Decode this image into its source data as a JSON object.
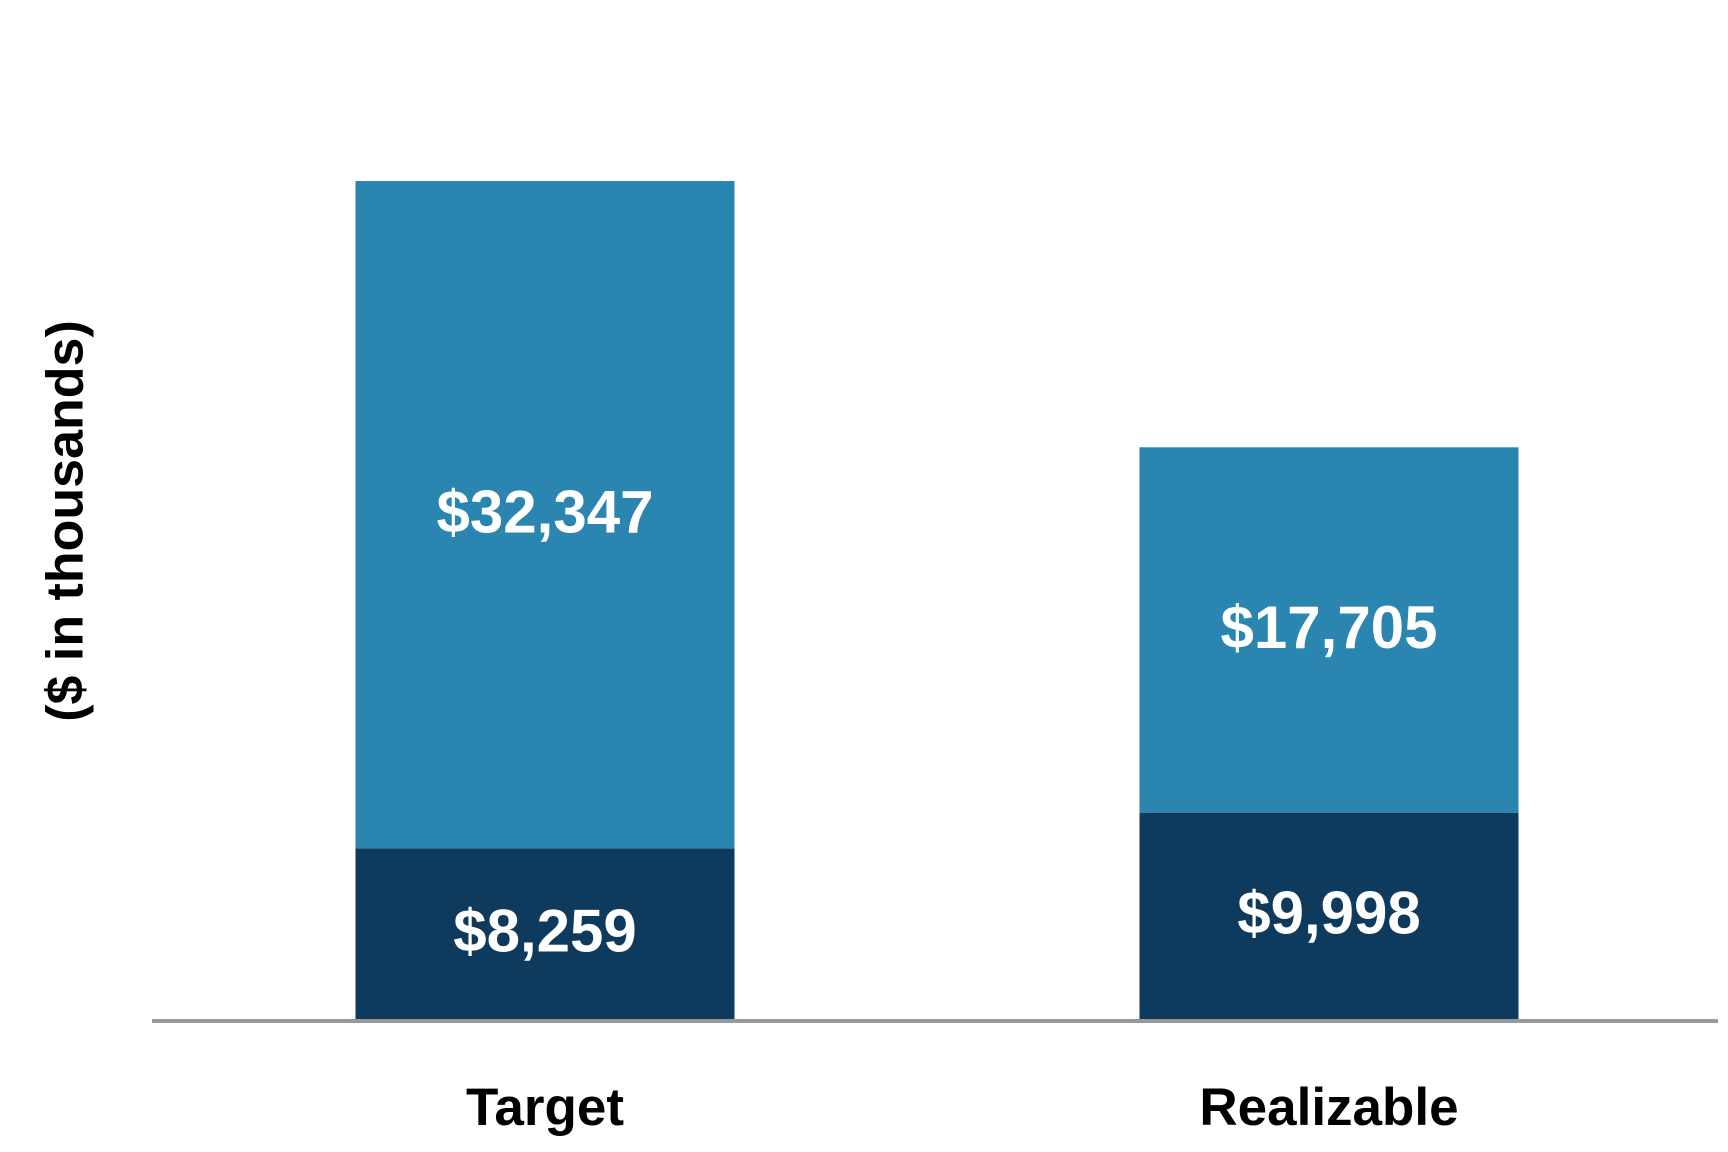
{
  "chart_data": {
    "type": "stacked_bar",
    "y_label": "($ in thousands)",
    "categories": [
      "Target",
      "Realizable"
    ],
    "series": [
      {
        "color": "#0e3a5e",
        "values": [
          8259,
          9998
        ],
        "value_labels": [
          "$8,259",
          "$9,998"
        ]
      },
      {
        "color": "#2a86b0",
        "values": [
          32347,
          17705
        ],
        "value_labels": [
          "$32,347",
          "$17,705"
        ]
      }
    ]
  }
}
